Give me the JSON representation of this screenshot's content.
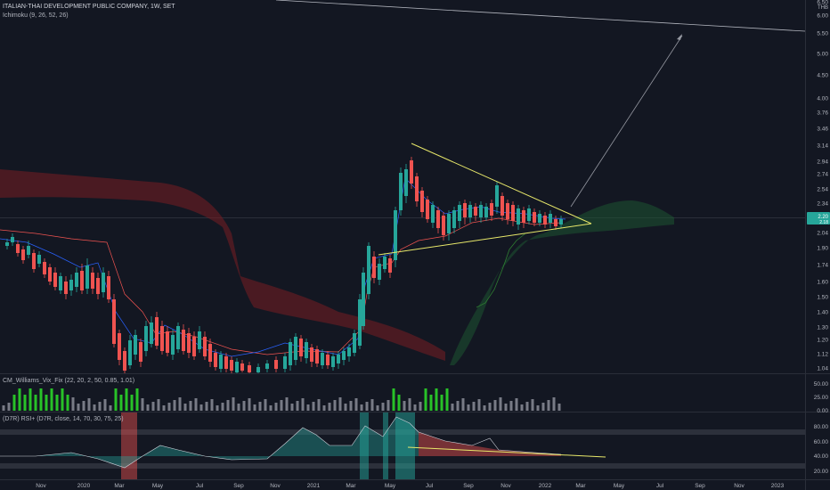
{
  "header": {
    "symbol_line": "ITALIAN-THAI DEVELOPMENT PUBLIC COMPANY, 1W, SET",
    "ichimoku": "Ichimoku (9, 26, 52, 26)"
  },
  "price_axis": {
    "currency": "THB",
    "ticks": [
      "6.50",
      "6.00",
      "5.50",
      "5.00",
      "4.50",
      "4.00",
      "3.76",
      "3.46",
      "3.14",
      "2.94",
      "2.74",
      "2.54",
      "2.34",
      "2.14",
      "2.04",
      "1.90",
      "1.74",
      "1.60",
      "1.50",
      "1.40",
      "1.30",
      "1.20",
      "1.12",
      "1.04"
    ],
    "last_price": "2.20",
    "last_price_sub": "2.18"
  },
  "vix": {
    "label": "CM_Williams_Vix_Fix (22, 20, 2, 50, 0.85, 1.01)",
    "ticks": [
      "50.00",
      "25.00",
      "0.00"
    ]
  },
  "rsi": {
    "label": "(D7R) RSI+ (D7R, close, 14, 70, 30, 75, 25)",
    "ticks": [
      "80.00",
      "60.00",
      "40.00",
      "20.00"
    ]
  },
  "time_axis": [
    "Nov",
    "2020",
    "Mar",
    "May",
    "Jul",
    "Sep",
    "Nov",
    "2021",
    "Mar",
    "May",
    "Jul",
    "Sep",
    "Nov",
    "2022",
    "Mar",
    "May",
    "Jul",
    "Sep",
    "Nov",
    "2023"
  ],
  "colors": {
    "background": "#131722",
    "up": "#26a69a",
    "down": "#ef5350",
    "trendline": "#e8e86a",
    "vix_high": "#28c228",
    "vix_normal": "#787b86"
  }
}
